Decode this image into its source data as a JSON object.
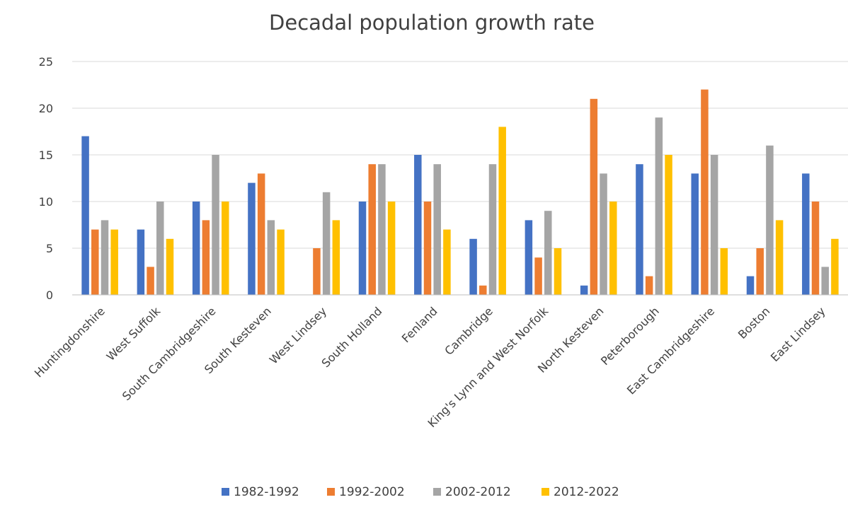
{
  "chart_data": {
    "type": "bar",
    "title": "Decadal population growth rate",
    "xlabel": "",
    "ylabel": "",
    "ylim": [
      0,
      25
    ],
    "yticks": [
      0,
      5,
      10,
      15,
      20,
      25
    ],
    "grid": true,
    "legend_position": "bottom",
    "categories": [
      "Huntingdonshire",
      "West Suffolk",
      "South Cambridgeshire",
      "South Kesteven",
      "West Lindsey",
      "South Holland",
      "Fenland",
      "Cambridge",
      "King's Lynn and West Norfolk",
      "North Kesteven",
      "Peterborough",
      "East Cambridgeshire",
      "Boston",
      "East Lindsey"
    ],
    "series": [
      {
        "name": "1982-1992",
        "color": "#4472c4",
        "values": [
          17,
          7,
          10,
          12,
          0,
          10,
          15,
          6,
          8,
          1,
          14,
          13,
          2,
          13
        ]
      },
      {
        "name": "1992-2002",
        "color": "#ed7d31",
        "values": [
          7,
          3,
          8,
          13,
          5,
          14,
          10,
          1,
          4,
          21,
          2,
          22,
          5,
          10
        ]
      },
      {
        "name": "2002-2012",
        "color": "#a5a5a5",
        "values": [
          8,
          10,
          15,
          8,
          11,
          14,
          14,
          14,
          9,
          13,
          19,
          15,
          16,
          3
        ]
      },
      {
        "name": "2012-2022",
        "color": "#ffc000",
        "values": [
          7,
          6,
          10,
          7,
          8,
          10,
          7,
          18,
          5,
          10,
          15,
          5,
          8,
          6
        ]
      }
    ]
  }
}
